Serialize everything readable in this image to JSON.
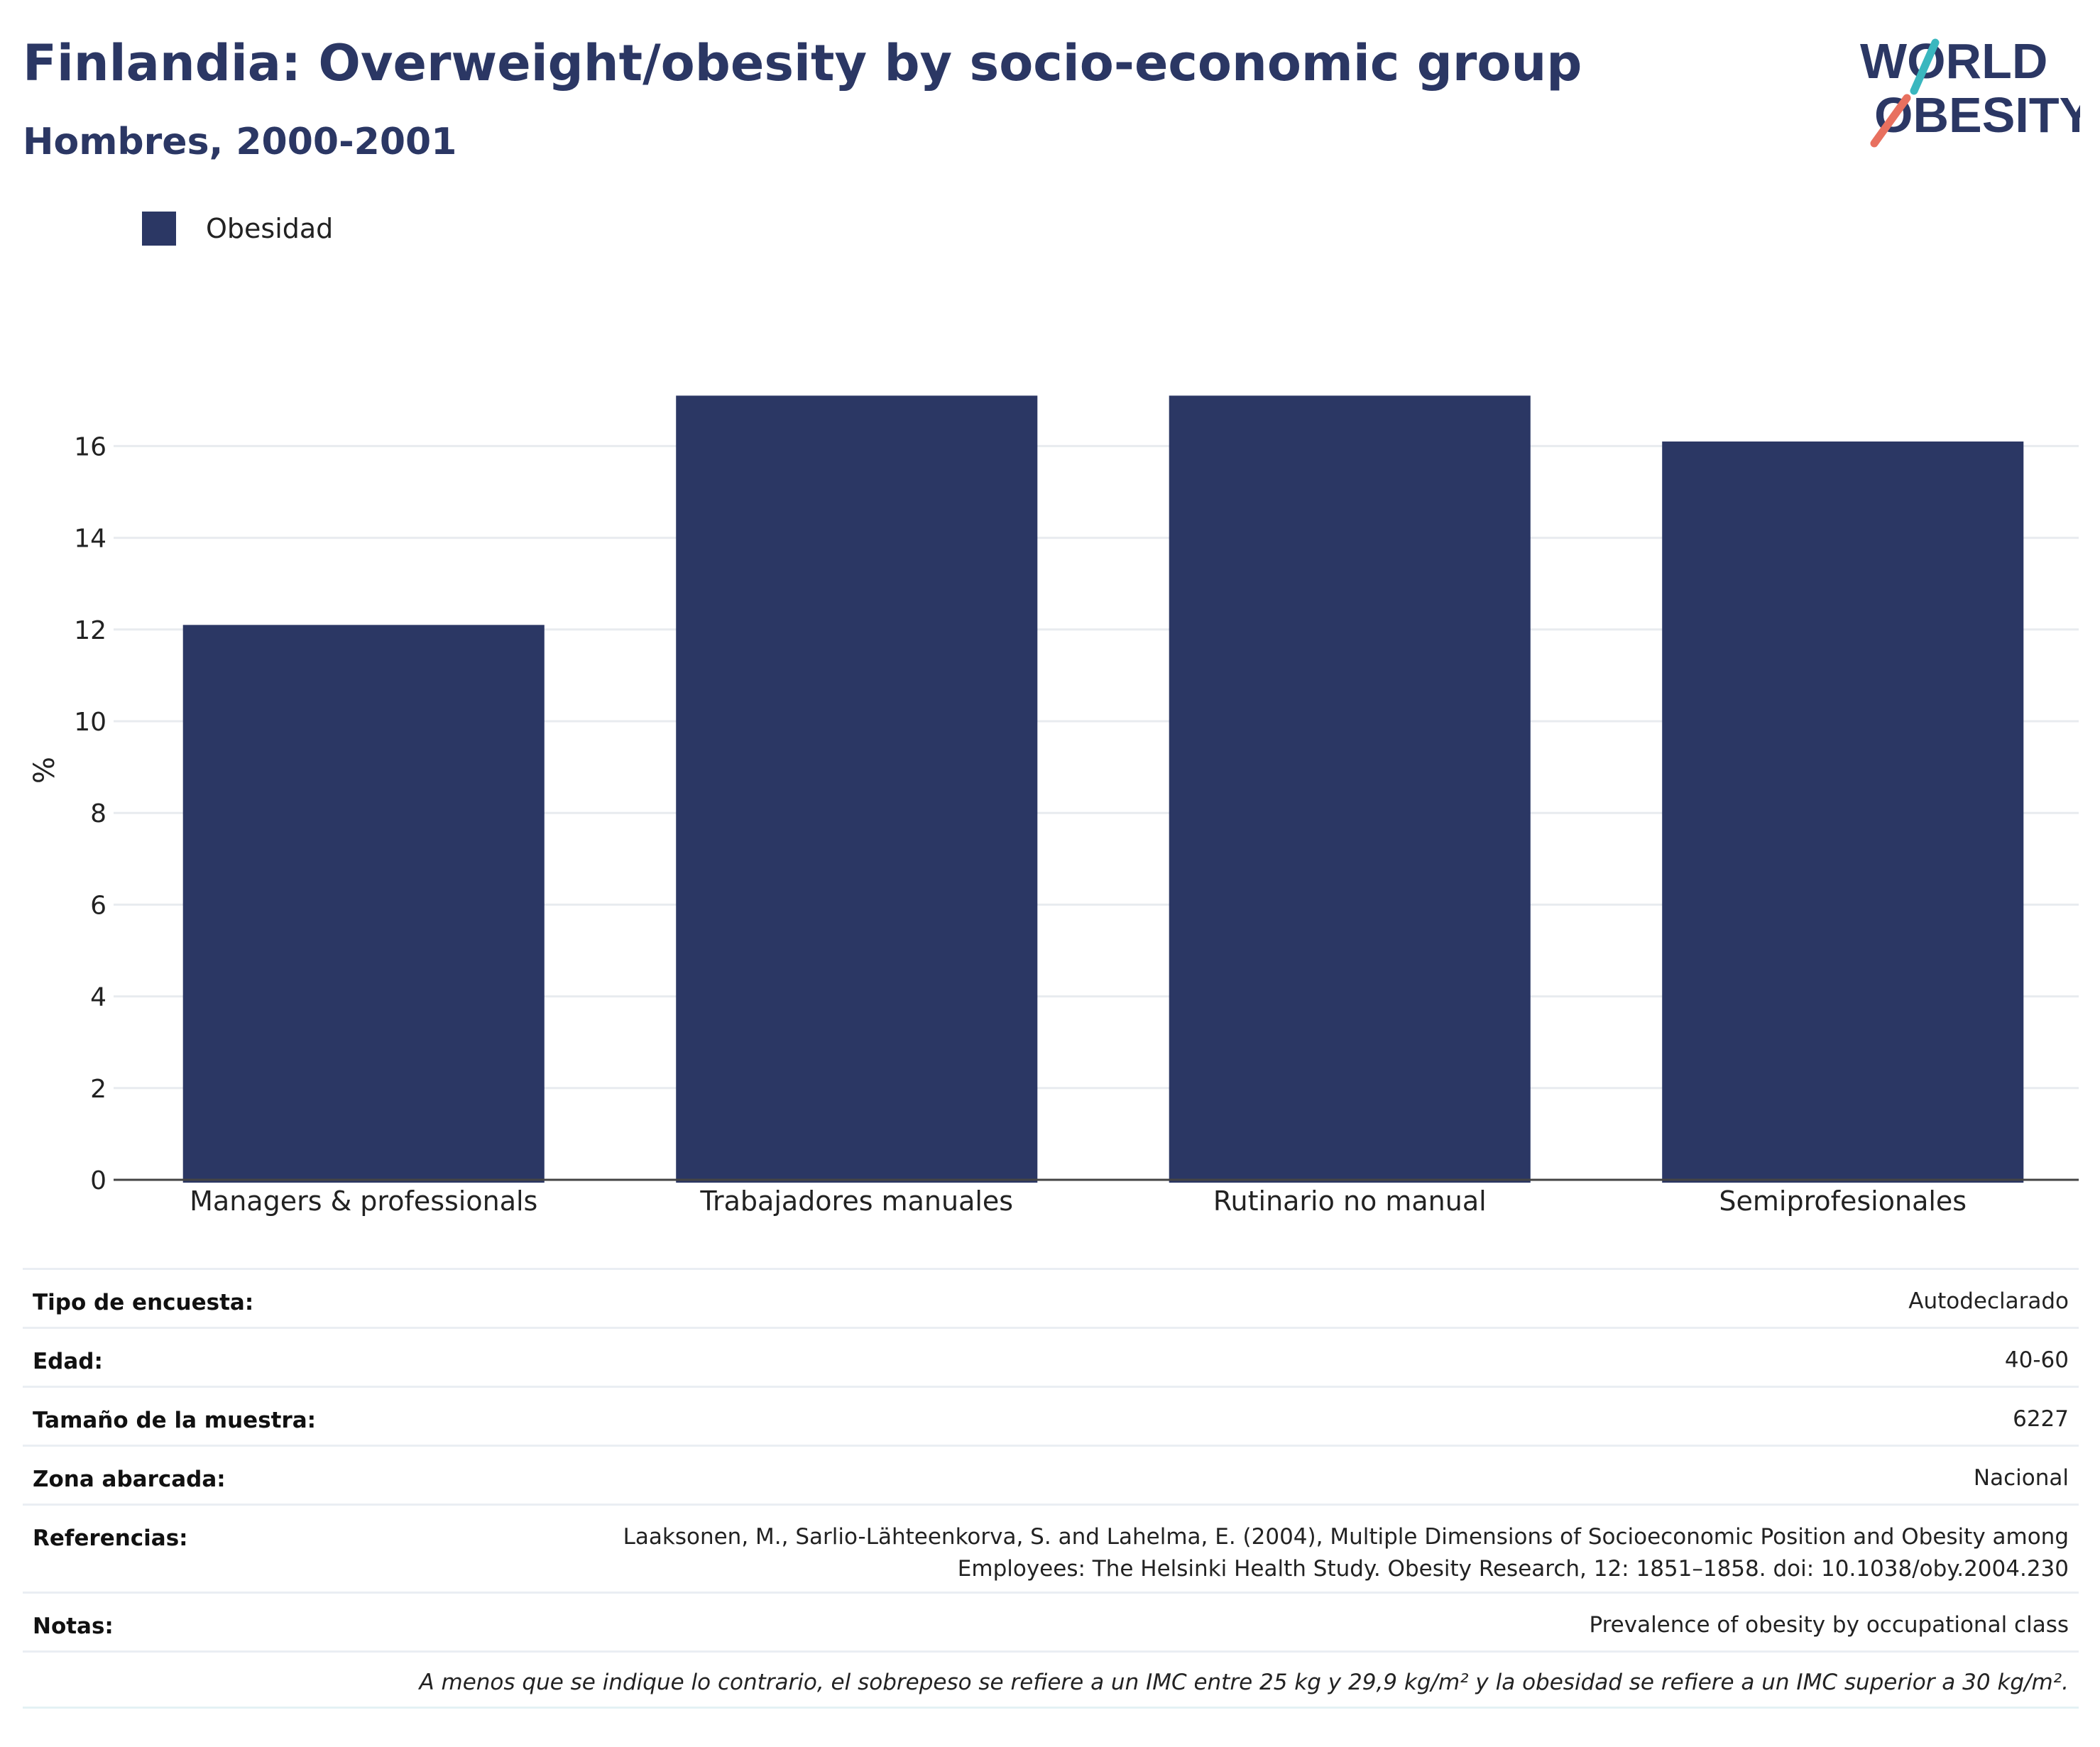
{
  "header": {
    "title": "Finlandia: Overweight/obesity by socio-economic group",
    "subtitle": "Hombres, 2000-2001"
  },
  "logo": {
    "line1": "WORLD",
    "line2": "OBESITY",
    "accent_teal": "#3ab7bf",
    "accent_coral": "#e8705f",
    "text_color": "#2b3764"
  },
  "legend": {
    "items": [
      {
        "label": "Obesidad",
        "color": "#2b3764"
      }
    ],
    "placement": "top-left"
  },
  "chart_data": {
    "type": "bar",
    "categories": [
      "Managers & professionals",
      "Trabajadores manuales",
      "Rutinario no manual",
      "Semiprofesionales"
    ],
    "series": [
      {
        "name": "Obesidad",
        "values": [
          12.1,
          17.1,
          17.1,
          16.1
        ],
        "color": "#2b3764"
      }
    ],
    "ylabel": "%",
    "ylim": [
      0,
      18
    ],
    "yticks": [
      0,
      2,
      4,
      6,
      8,
      10,
      12,
      14,
      16
    ],
    "grid": true
  },
  "info": {
    "rows": [
      {
        "label": "Tipo de encuesta:",
        "value": "Autodeclarado"
      },
      {
        "label": "Edad:",
        "value": "40-60"
      },
      {
        "label": "Tamaño de la muestra:",
        "value": "6227"
      },
      {
        "label": "Zona abarcada:",
        "value": "Nacional"
      },
      {
        "label": "Referencias:",
        "value_line1": "Laaksonen, M., Sarlio-Lähteenkorva, S. and Lahelma, E. (2004), Multiple Dimensions of Socioeconomic Position and Obesity among",
        "value_line2": "Employees: The Helsinki Health Study. Obesity Research, 12: 1851–1858. doi: 10.1038/oby.2004.230"
      },
      {
        "label": "Notas:",
        "value": "Prevalence of obesity by occupational class"
      }
    ],
    "footnote": "A menos que se indique lo contrario, el sobrepeso se refiere a un IMC entre 25 kg y 29,9 kg/m² y la obesidad se refiere a un IMC superior a 30 kg/m²."
  }
}
